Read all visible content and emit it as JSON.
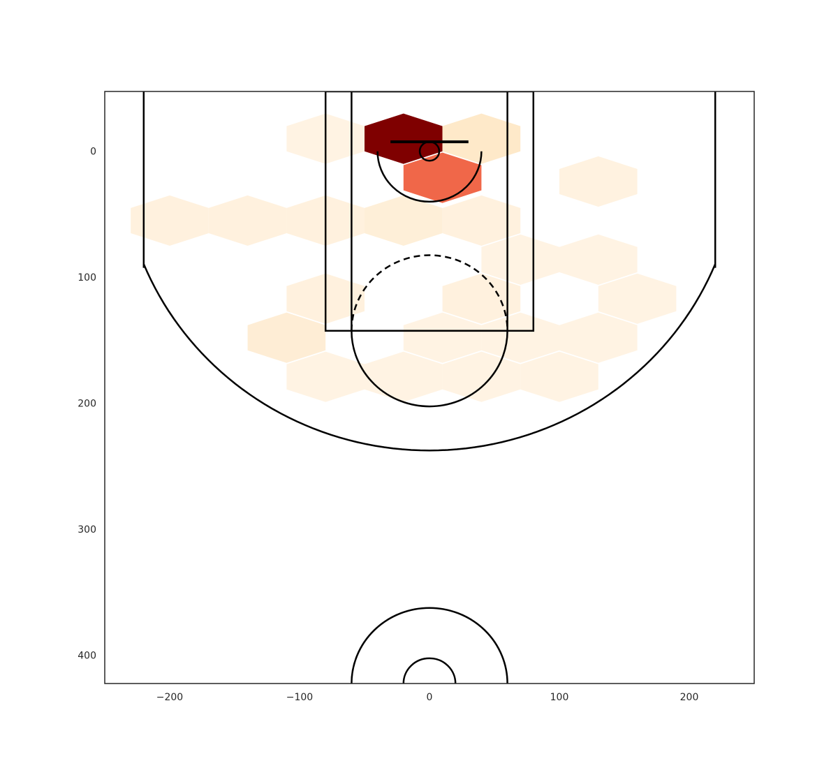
{
  "chart_data": {
    "type": "heatmap",
    "subtype": "hexbin shot chart on basketball half court",
    "title": "",
    "xlabel": "",
    "ylabel": "",
    "xlim": [
      -250,
      250
    ],
    "ylim": [
      422.5,
      -47.5
    ],
    "y_axis_inverted": true,
    "grid": false,
    "colormap": "OrRd",
    "x_ticks": [
      -200,
      -100,
      0,
      100,
      200
    ],
    "x_tick_labels": [
      "−200",
      "−100",
      "0",
      "100",
      "200"
    ],
    "y_ticks": [
      0,
      100,
      200,
      300,
      400
    ],
    "y_tick_labels": [
      "0",
      "100",
      "200",
      "300",
      "400"
    ],
    "hex_size": 40,
    "hexbins": [
      {
        "x": -20,
        "y": -10,
        "intensity": 1.0
      },
      {
        "x": 10,
        "y": 21,
        "intensity": 0.62
      },
      {
        "x": 40,
        "y": -10,
        "intensity": 0.12
      },
      {
        "x": -80,
        "y": -10,
        "intensity": 0.03
      },
      {
        "x": 130,
        "y": 24,
        "intensity": 0.04
      },
      {
        "x": -200,
        "y": 55,
        "intensity": 0.05
      },
      {
        "x": -140,
        "y": 55,
        "intensity": 0.05
      },
      {
        "x": -80,
        "y": 55,
        "intensity": 0.05
      },
      {
        "x": -20,
        "y": 55,
        "intensity": 0.07
      },
      {
        "x": 40,
        "y": 55,
        "intensity": 0.05
      },
      {
        "x": 70,
        "y": 86,
        "intensity": 0.03
      },
      {
        "x": 130,
        "y": 86,
        "intensity": 0.03
      },
      {
        "x": -80,
        "y": 117,
        "intensity": 0.05
      },
      {
        "x": 40,
        "y": 117,
        "intensity": 0.05
      },
      {
        "x": 160,
        "y": 117,
        "intensity": 0.03
      },
      {
        "x": -110,
        "y": 148,
        "intensity": 0.08
      },
      {
        "x": 10,
        "y": 148,
        "intensity": 0.03
      },
      {
        "x": 70,
        "y": 148,
        "intensity": 0.03
      },
      {
        "x": 130,
        "y": 148,
        "intensity": 0.03
      },
      {
        "x": -80,
        "y": 179,
        "intensity": 0.03
      },
      {
        "x": -20,
        "y": 179,
        "intensity": 0.03
      },
      {
        "x": 40,
        "y": 179,
        "intensity": 0.03
      },
      {
        "x": 100,
        "y": 179,
        "intensity": 0.03
      }
    ],
    "court": {
      "hoop_radius": 7.5,
      "backboard": {
        "x1": -30,
        "x2": 30,
        "y": -7.5
      },
      "outer_box": {
        "x": -80,
        "y": -47.5,
        "width": 160,
        "height": 190
      },
      "inner_box": {
        "x": -60,
        "y": -47.5,
        "width": 120,
        "height": 190
      },
      "free_throw_circle_center_y": 142.5,
      "free_throw_circle_radius": 60,
      "restricted_area_radius": 40,
      "corner_three_x": 220,
      "corner_three_length": 140,
      "three_point_arc_radius": 237.5,
      "center_court_y": 422.5,
      "center_outer_radius": 60,
      "center_inner_radius": 20
    }
  }
}
